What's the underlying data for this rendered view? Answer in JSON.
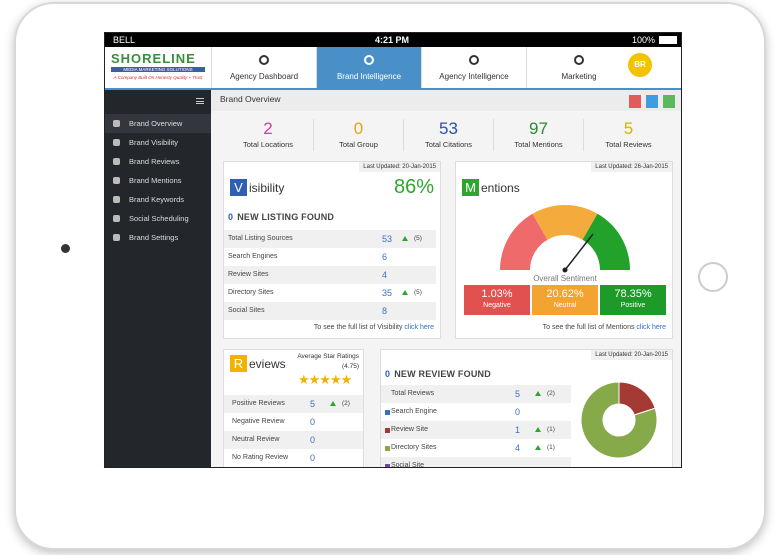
{
  "status_bar": {
    "carrier": "BELL",
    "time": "4:21 PM",
    "battery": "100%"
  },
  "logo": {
    "name": "SHORELINE",
    "subtitle": "MEDIA MARKETING SOLUTIONS",
    "tagline": "A Company Built On Honesty Quality + Trust"
  },
  "top_nav": [
    "Agency Dashboard",
    "Brand Intelligence",
    "Agency Intelligence",
    "Marketing"
  ],
  "avatar": "BR",
  "sidebar": [
    "Brand Overview",
    "Brand Visibility",
    "Brand Reviews",
    "Brand Mentions",
    "Brand Keywords",
    "Social Scheduling",
    "Brand Settings"
  ],
  "page_title": "Brand Overview",
  "summary": [
    {
      "value": "2",
      "label": "Total Locations",
      "color": "#c2449e"
    },
    {
      "value": "0",
      "label": "Total Group",
      "color": "#e8a317"
    },
    {
      "value": "53",
      "label": "Total Citations",
      "color": "#2f4fa8"
    },
    {
      "value": "97",
      "label": "Total Mentions",
      "color": "#2a8a3a"
    },
    {
      "value": "5",
      "label": "Total Reviews",
      "color": "#d9b300"
    }
  ],
  "visibility": {
    "last_updated": "Last Updated: 20-Jan-2015",
    "initial": "V",
    "title": "isibility",
    "score": "86%",
    "new_count": "0",
    "new_text": "NEW LISTING FOUND",
    "rows": [
      {
        "label": "Total Listing Sources",
        "value": "53",
        "change": "(5)"
      },
      {
        "label": "Search Engines",
        "value": "6"
      },
      {
        "label": "Review Sites",
        "value": "4"
      },
      {
        "label": "Directory Sites",
        "value": "35",
        "change": "(5)"
      },
      {
        "label": "Social Sites",
        "value": "8"
      }
    ],
    "footer": "To see the full list of Visibility",
    "link": "click here"
  },
  "mentions": {
    "last_updated": "Last Updated: 26-Jan-2015",
    "initial": "M",
    "title": "entions",
    "gauge_label": "Overall Sentiment",
    "sentiment": [
      {
        "value": "1.03%",
        "label": "Negative",
        "color": "#e0514f"
      },
      {
        "value": "20.62%",
        "label": "Neutral",
        "color": "#f3a330"
      },
      {
        "value": "78.35%",
        "label": "Positive",
        "color": "#1e9a28"
      }
    ],
    "footer": "To see the full list of Mentions",
    "link": "click here"
  },
  "reviews": {
    "initial": "R",
    "title": "eviews",
    "rating_label": "Average Star Ratings",
    "rating": "(4.75)",
    "rows": [
      {
        "label": "Positive Reviews",
        "value": "5",
        "change": "(2)"
      },
      {
        "label": "Negative Review",
        "value": "0"
      },
      {
        "label": "Neutral Review",
        "value": "0"
      },
      {
        "label": "No Rating Review",
        "value": "0"
      }
    ]
  },
  "new_reviews": {
    "last_updated": "Last Updated: 20-Jan-2015",
    "new_count": "0",
    "new_text": "NEW REVIEW FOUND",
    "rows": [
      {
        "label": "Total Reviews",
        "value": 5,
        "change": "(2)"
      },
      {
        "label": "Search Engine",
        "value": 0,
        "color": "#3b6fb6"
      },
      {
        "label": "Review Site",
        "value": 1,
        "change": "(1)",
        "color": "#a33b34"
      },
      {
        "label": "Directory Sites",
        "value": 4,
        "change": "(1)",
        "color": "#86a94a"
      },
      {
        "label": "Social Site",
        "color": "#6b4c9a"
      }
    ]
  }
}
